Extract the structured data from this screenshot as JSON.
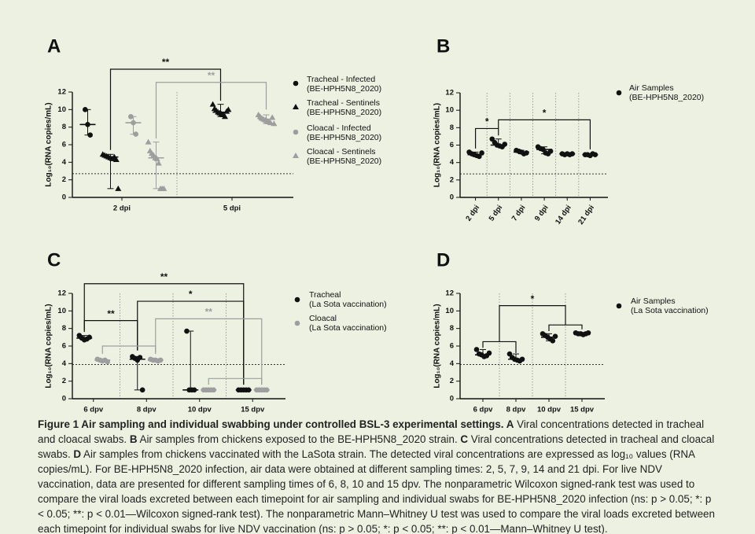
{
  "chart_data": [
    {
      "type": "dot",
      "title": "A",
      "ylabel": "Log₁₀(RNA copies/mL)",
      "categories": [
        "2 dpi",
        "5 dpi"
      ],
      "ylim": [
        0,
        12
      ],
      "yticks": [
        0,
        2,
        4,
        6,
        8,
        10,
        12
      ],
      "threshold": 2.7,
      "series": [
        {
          "name": "Tracheal - Infected\n(BE-HPH5N8_2020)",
          "color": "#111111",
          "marker": "circle",
          "values": [
            [
              10,
              8.3,
              7.1
            ],
            null
          ],
          "medians": [
            8.3,
            null
          ]
        },
        {
          "name": "Tracheal - Sentinels\n(BE-HPH5N8_2020)",
          "color": "#111111",
          "marker": "triangle",
          "values": [
            [
              4.9,
              4.8,
              4.7,
              4.6,
              4.5,
              4.4,
              4.6,
              4.3,
              1.0
            ],
            [
              10.6,
              10.1,
              9.9,
              9.7,
              9.6,
              9.5,
              9.4,
              9.2,
              9.8,
              10.0
            ]
          ],
          "medians": [
            4.6,
            9.7
          ]
        },
        {
          "name": "Cloacal - Infected\n(BE-HPH5N8_2020)",
          "color": "#9e9e9e",
          "marker": "circle",
          "values": [
            [
              9.2,
              8.5,
              7.2
            ],
            null
          ],
          "medians": [
            8.5,
            null
          ]
        },
        {
          "name": "Cloacal - Sentinels\n(BE-HPH5N8_2020)",
          "color": "#9e9e9e",
          "marker": "triangle",
          "values": [
            [
              6.3,
              5.3,
              5.0,
              4.8,
              4.5,
              4.4,
              3.9,
              1.0,
              1.0,
              1.0
            ],
            [
              9.4,
              9.2,
              9.0,
              8.9,
              8.8,
              8.7,
              8.6,
              8.5,
              9.1,
              8.4
            ]
          ],
          "medians": [
            4.5,
            8.9
          ]
        }
      ],
      "annotations": [
        "**",
        "**"
      ]
    },
    {
      "type": "dot",
      "title": "B",
      "ylabel": "Log₁₀(RNA copies/mL)",
      "categories": [
        "2 dpi",
        "5 dpi",
        "7 dpi",
        "9 dpi",
        "14 dpi",
        "21 dpi"
      ],
      "ylim": [
        0,
        12
      ],
      "yticks": [
        0,
        2,
        4,
        6,
        8,
        10,
        12
      ],
      "threshold": 2.7,
      "series": [
        {
          "name": "Air Samples\n(BE-HPH5N8_2020)",
          "color": "#111111",
          "marker": "circle",
          "values": [
            [
              5.2,
              5.0,
              4.9,
              4.8,
              4.7,
              5.1
            ],
            [
              6.7,
              6.3,
              6.0,
              5.9,
              5.8,
              6.1
            ],
            [
              5.4,
              5.3,
              5.2,
              5.0,
              5.1
            ],
            [
              5.8,
              5.6,
              5.5,
              5.1,
              5.0,
              5.3
            ],
            [
              5.0,
              4.9,
              5.0,
              4.9,
              5.0
            ],
            [
              4.9,
              4.9,
              4.8,
              5.0,
              4.9
            ]
          ],
          "medians": [
            4.9,
            6.0,
            5.2,
            5.5,
            5.0,
            4.9
          ]
        }
      ],
      "annotations": [
        "*",
        "*"
      ]
    },
    {
      "type": "dot",
      "title": "C",
      "ylabel": "Log₁₀(RNA copies/mL)",
      "categories": [
        "6 dpv",
        "8 dpv",
        "10 dpv",
        "15 dpv"
      ],
      "ylim": [
        0,
        12
      ],
      "yticks": [
        0,
        2,
        4,
        6,
        8,
        10,
        12
      ],
      "threshold": 3.9,
      "series": [
        {
          "name": "Tracheal\n(La Sota vaccination)",
          "color": "#111111",
          "marker": "circle",
          "values": [
            [
              7.2,
              6.9,
              6.7,
              6.8,
              7.0
            ],
            [
              4.8,
              4.6,
              4.4,
              4.7,
              1.0
            ],
            [
              7.7,
              1.0,
              1.0,
              1.0
            ],
            [
              1.0,
              1.0,
              1.0,
              1.0,
              1.0
            ]
          ],
          "medians": [
            6.9,
            4.5,
            1.0,
            1.0
          ]
        },
        {
          "name": "Cloacal\n(La Sota vaccination)",
          "color": "#9e9e9e",
          "marker": "circle",
          "values": [
            [
              4.5,
              4.4,
              4.3,
              4.4,
              4.2
            ],
            [
              4.5,
              4.4,
              4.4,
              4.3,
              4.4
            ],
            [
              1.0,
              1.0,
              1.0,
              1.0,
              1.0
            ],
            [
              1.0,
              1.0,
              1.0,
              1.0,
              1.0
            ]
          ],
          "medians": [
            4.4,
            4.4,
            1.0,
            1.0
          ]
        }
      ],
      "annotations": [
        "**",
        "*",
        "**",
        "**"
      ]
    },
    {
      "type": "dot",
      "title": "D",
      "ylabel": "Log₁₀(RNA copies/mL)",
      "categories": [
        "6 dpv",
        "8 dpv",
        "10 dpv",
        "15 dpv"
      ],
      "ylim": [
        0,
        12
      ],
      "yticks": [
        0,
        2,
        4,
        6,
        8,
        10,
        12
      ],
      "threshold": 3.9,
      "series": [
        {
          "name": "Air Samples\n(La Sota vaccination)",
          "color": "#111111",
          "marker": "circle",
          "values": [
            [
              5.6,
              5.1,
              5.0,
              4.8,
              4.9,
              5.2
            ],
            [
              5.1,
              4.7,
              4.5,
              4.4,
              4.3,
              4.5
            ],
            [
              7.4,
              7.2,
              7.0,
              6.8,
              6.6,
              7.1
            ],
            [
              7.5,
              7.4,
              7.4,
              7.3,
              7.4,
              7.5
            ]
          ],
          "medians": [
            5.0,
            4.5,
            7.0,
            7.4
          ]
        }
      ],
      "annotations": [
        "*"
      ]
    }
  ],
  "caption": [
    {
      "text": "Figure 1  Air sampling and individual swabbing under controlled BSL-3 experimental settings. A",
      "bold": true
    },
    {
      "text": " Viral concentrations detected in tracheal and cloacal swabs. "
    },
    {
      "text": "B",
      "bold": true
    },
    {
      "text": " Air samples from chickens exposed to the BE-HPH5N8_2020 strain. "
    },
    {
      "text": "C",
      "bold": true
    },
    {
      "text": " Viral concentrations detected in tracheal and cloacal swabs. "
    },
    {
      "text": "D",
      "bold": true
    },
    {
      "text": " Air samples from chickens vaccinated with the LaSota strain. The detected viral concentrations are expressed as log₁₀ values (RNA copies/mL). For BE-HPH5N8_2020 infection, air data were obtained at different sampling times: 2, 5, 7, 9, 14 and 21 dpi. For live NDV vaccination, data are presented for different sampling times of 6, 8, 10 and 15 dpv. The nonparametric Wilcoxon signed-rank test was used to compare the viral loads excreted between each timepoint for air sampling and individual swabs for BE-HPH5N8_2020 infection (ns: p > 0.05; *: p < 0.05; **: p < 0.01—Wilcoxon signed-rank test). The nonparametric Mann–Whitney U test was used to compare the viral loads excreted between each timepoint for individual swabs for live NDV vaccination (ns: p > 0.05; *: p < 0.05; **: p < 0.01—Mann–Whitney U test)."
    }
  ]
}
